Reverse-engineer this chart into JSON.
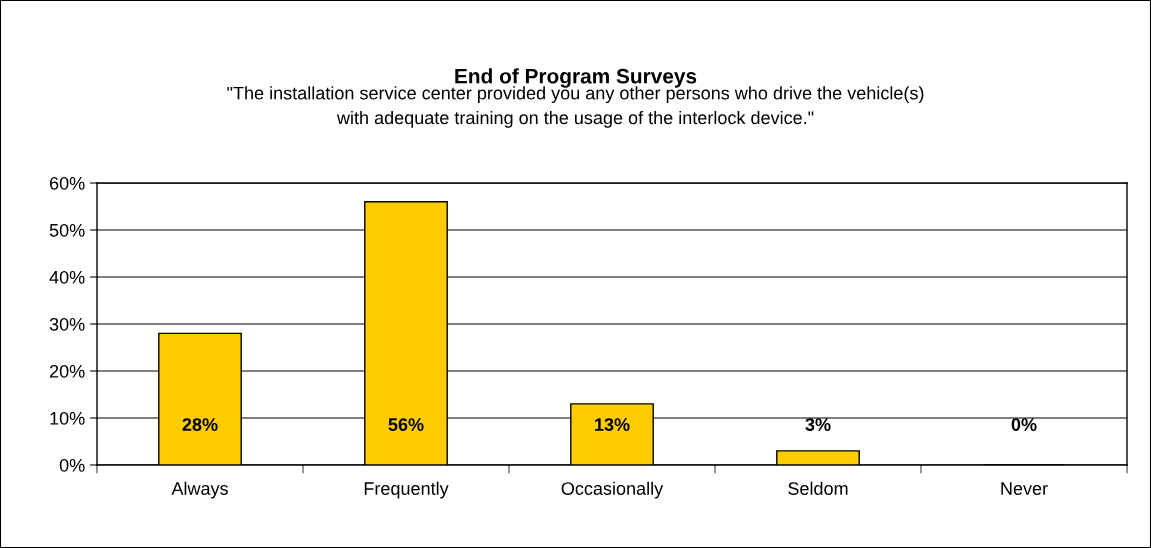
{
  "chart_data": {
    "type": "bar",
    "title": "End of Program Surveys",
    "subtitle": "\"The installation service center provided you any other persons who drive the vehicle(s)\nwith adequate training on the usage of the interlock device.\"",
    "categories": [
      "Always",
      "Frequently",
      "Occasionally",
      "Seldom",
      "Never"
    ],
    "values": [
      28,
      56,
      13,
      3,
      0
    ],
    "value_labels": [
      "28%",
      "56%",
      "13%",
      "3%",
      "0%"
    ],
    "color": "#ffcc00",
    "ylim": [
      0,
      60
    ],
    "yticks": [
      {
        "value": 0,
        "label": "0%"
      },
      {
        "value": 10,
        "label": "10%"
      },
      {
        "value": 20,
        "label": "20%"
      },
      {
        "value": 30,
        "label": "30%"
      },
      {
        "value": 40,
        "label": "40%"
      },
      {
        "value": 50,
        "label": "50%"
      },
      {
        "value": 60,
        "label": "60%"
      }
    ],
    "grid": "y",
    "legend": false
  }
}
